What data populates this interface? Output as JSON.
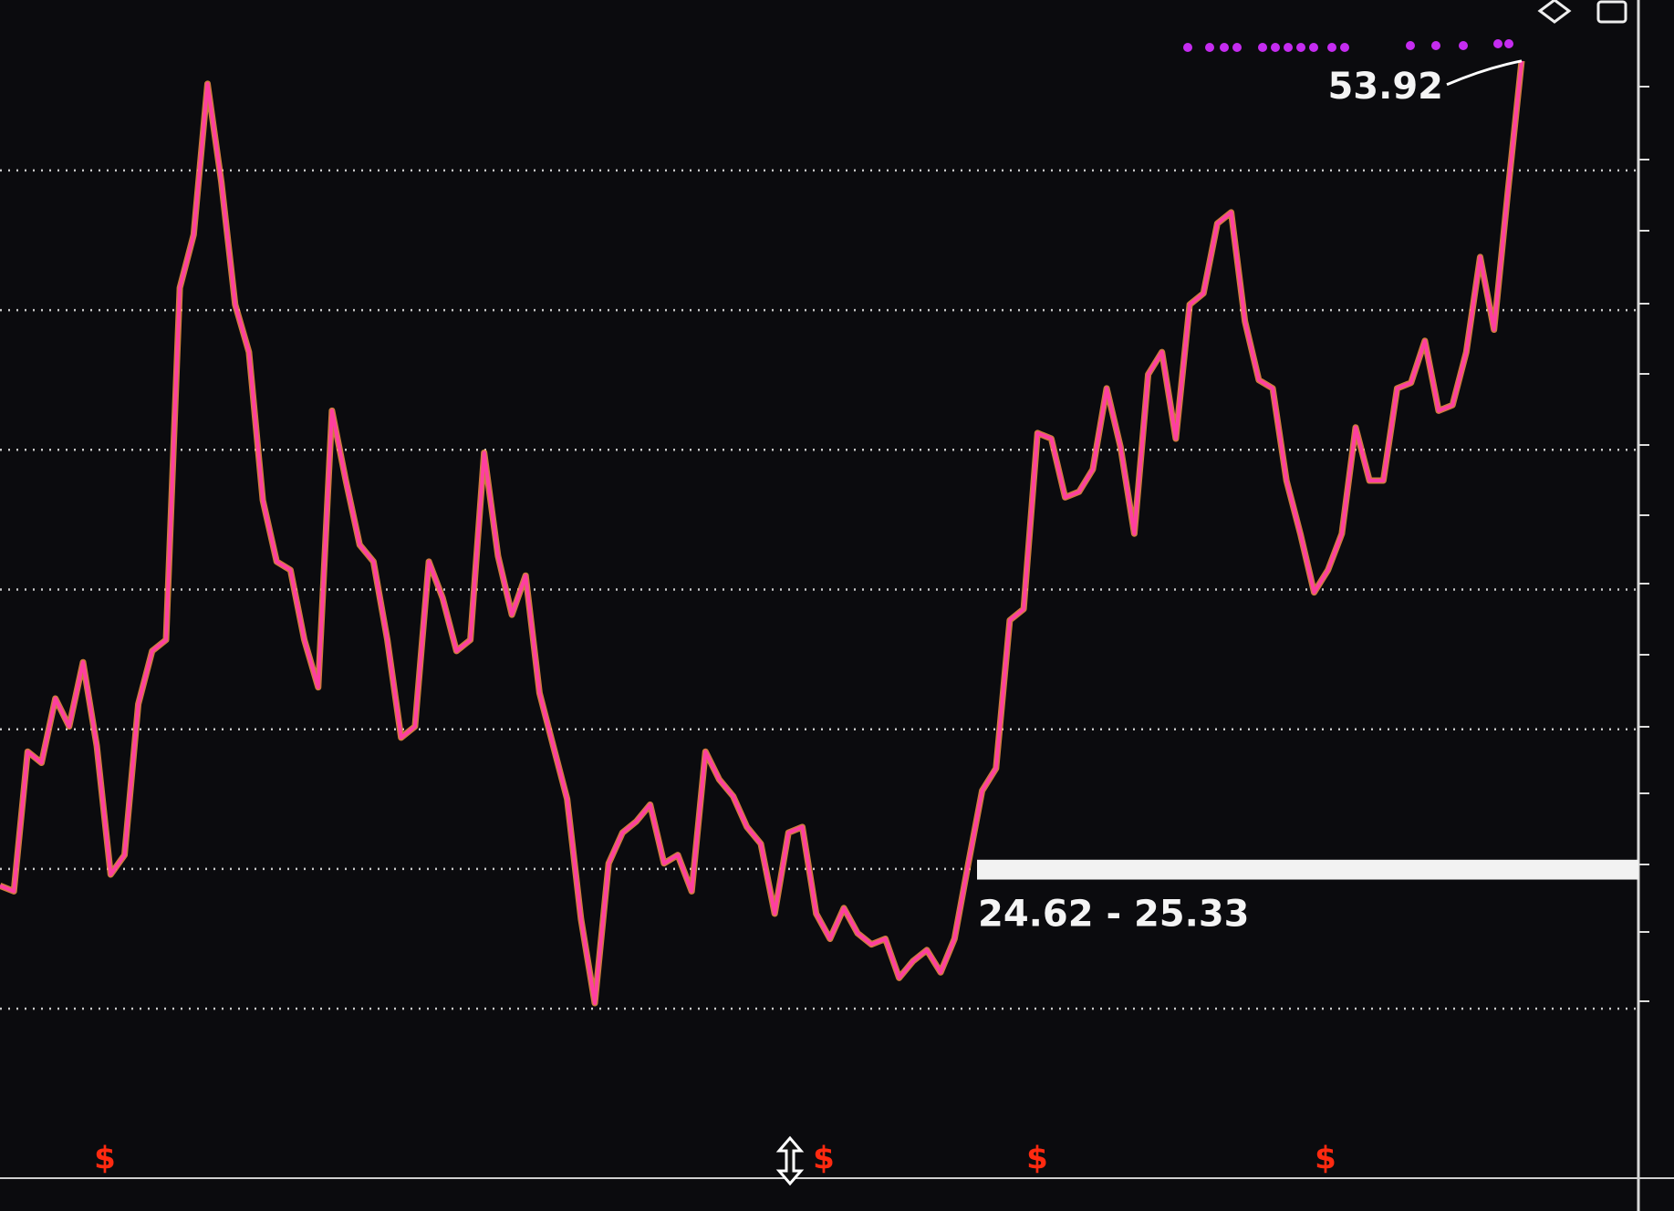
{
  "chart_data": {
    "type": "line",
    "values": [
      24.4,
      24.2,
      29.2,
      28.8,
      31.1,
      30.1,
      32.4,
      29.4,
      24.8,
      25.5,
      30.9,
      32.8,
      33.2,
      45.8,
      47.7,
      53.1,
      49.6,
      45.2,
      43.5,
      38.2,
      36.0,
      35.7,
      33.2,
      31.5,
      41.4,
      38.9,
      36.6,
      36.0,
      33.2,
      29.7,
      30.1,
      36.0,
      34.7,
      32.8,
      33.2,
      39.9,
      36.2,
      34.1,
      35.5,
      31.3,
      29.4,
      27.5,
      23.2,
      20.2,
      25.2,
      26.3,
      26.7,
      27.3,
      25.2,
      25.5,
      24.2,
      29.2,
      28.2,
      27.6,
      26.5,
      25.9,
      23.4,
      26.3,
      26.5,
      23.4,
      22.5,
      23.6,
      22.7,
      22.3,
      22.5,
      21.1,
      21.7,
      22.1,
      21.3,
      22.5,
      25.2,
      27.8,
      28.6,
      33.9,
      34.3,
      40.6,
      40.4,
      38.3,
      38.5,
      39.3,
      42.2,
      40.1,
      37.0,
      42.7,
      43.5,
      40.4,
      45.2,
      45.6,
      48.1,
      48.5,
      44.6,
      42.5,
      42.2,
      38.9,
      37.0,
      34.9,
      35.7,
      37.0,
      40.8,
      38.9,
      38.9,
      42.2,
      42.4,
      43.9,
      41.4,
      41.6,
      43.5,
      46.9,
      44.3,
      49.2,
      53.92
    ],
    "color": "#ff3fa0",
    "ylim": [
      13.9,
      56.1
    ],
    "yticks": [
      20,
      25,
      30,
      35,
      40,
      45,
      50
    ],
    "grid": true,
    "band": {
      "values": [
        24.62,
        25.33
      ],
      "label": "24.62 - 25.33"
    },
    "markers": [
      "$",
      "$",
      "$",
      "$"
    ]
  }
}
